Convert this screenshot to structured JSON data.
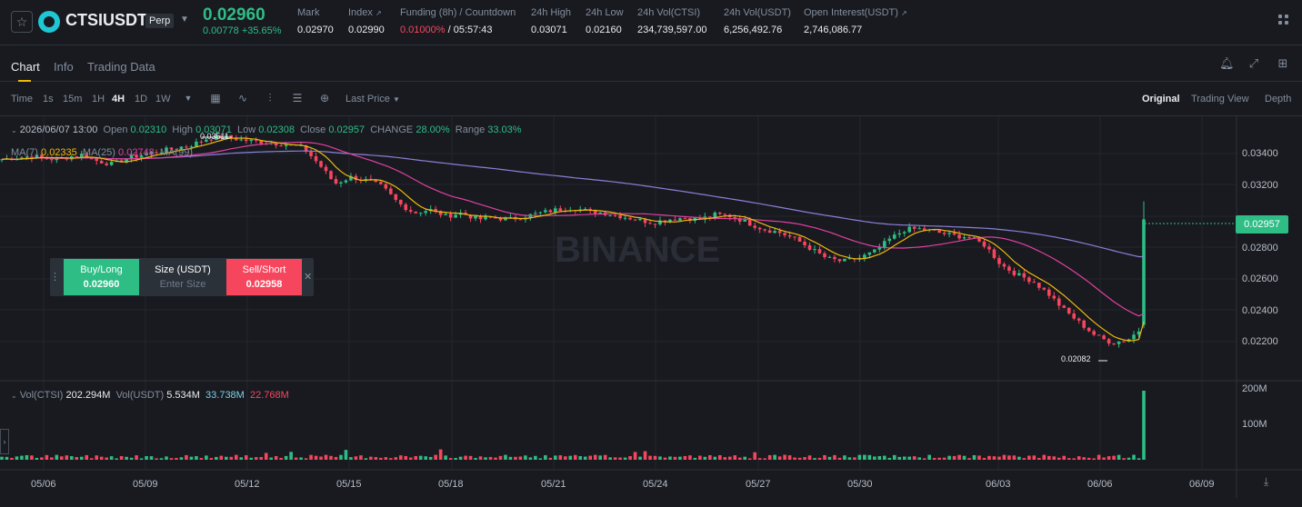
{
  "header": {
    "symbol": "CTSIUSDT",
    "contract_type": "Perp",
    "last_price": "0.02960",
    "change": "0.00778 +35.65%",
    "stats": [
      {
        "label": "Mark",
        "value": "0.02970"
      },
      {
        "label": "Index",
        "value": "0.02990"
      },
      {
        "label": "Funding (8h) / Countdown",
        "value_red": "0.01000%",
        "value": "/ 05:57:43"
      },
      {
        "label": "24h High",
        "value": "0.03071"
      },
      {
        "label": "24h Low",
        "value": "0.02160"
      },
      {
        "label": "24h Vol(CTSI)",
        "value": "234,739,597.00"
      },
      {
        "label": "24h Vol(USDT)",
        "value": "6,256,492.76"
      },
      {
        "label": "Open Interest(USDT)",
        "value": "2,746,086.77"
      }
    ]
  },
  "tabs": [
    "Chart",
    "Info",
    "Trading Data"
  ],
  "toolbar": {
    "intervals": [
      "Time",
      "1s",
      "15m",
      "1H",
      "4H",
      "1D",
      "1W"
    ],
    "active_interval": "4H",
    "price_type": "Last Price",
    "views": [
      "Original",
      "Trading View",
      "Depth"
    ],
    "active_view": "Original"
  },
  "legend": {
    "date": "2026/06/07 13:00",
    "open_label": "Open",
    "open": "0.02310",
    "high_label": "High",
    "high": "0.03071",
    "low_label": "Low",
    "low": "0.02308",
    "close_label": "Close",
    "close": "0.02957",
    "change_label": "CHANGE",
    "change": "28.00%",
    "range_label": "Range",
    "range": "33.03%",
    "ma7_label": "MA(7)",
    "ma7": "0.02335",
    "ma25_label": "MA(25)",
    "ma25": "0.02748",
    "ma99_label": "MA(99)",
    "max_label": "0.03511",
    "min_label": "0.02082"
  },
  "volume_legend": {
    "ctsi_label": "Vol(CTSI)",
    "ctsi": "202.294M",
    "usdt_label": "Vol(USDT)",
    "usdt": "5.534M",
    "ma1": "33.738M",
    "ma2": "22.768M"
  },
  "order_panel": {
    "buy_label": "Buy/Long",
    "buy_price": "0.02960",
    "size_label": "Size (USDT)",
    "size_placeholder": "Enter Size",
    "sell_label": "Sell/Short",
    "sell_price": "0.02958"
  },
  "watermark": "BINANCE",
  "current_price_badge": "0.02957",
  "colors": {
    "up": "#2ebd85",
    "down": "#f6465d",
    "ma7": "#f0b90b",
    "ma25": "#e040a0",
    "ma99": "#8b7fd6",
    "bg": "#181a20"
  },
  "chart_data": {
    "type": "candlestick",
    "y_ticks": [
      "0.03400",
      "0.03200",
      "0.03000",
      "0.02800",
      "0.02600",
      "0.02400",
      "0.02200"
    ],
    "ylim": [
      0.02,
      0.0355
    ],
    "volume_ticks": [
      "200M",
      "100M"
    ],
    "x_ticks": [
      "05/06",
      "05/09",
      "05/12",
      "05/15",
      "05/18",
      "05/21",
      "05/24",
      "05/27",
      "05/30",
      "06/03",
      "06/06",
      "06/09"
    ],
    "close_path": [
      0.0333,
      0.0334,
      0.0335,
      0.0333,
      0.0334,
      0.0336,
      0.0332,
      0.033,
      0.0334,
      0.0336,
      0.0338,
      0.034,
      0.0342,
      0.0346,
      0.0347,
      0.0345,
      0.0344,
      0.0343,
      0.0342,
      0.034,
      0.033,
      0.0318,
      0.0322,
      0.032,
      0.0316,
      0.0306,
      0.03,
      0.0302,
      0.0298,
      0.03,
      0.0296,
      0.0297,
      0.0296,
      0.0298,
      0.03,
      0.0302,
      0.0303,
      0.0301,
      0.03,
      0.0298,
      0.0296,
      0.0294,
      0.0296,
      0.0297,
      0.0296,
      0.0299,
      0.0298,
      0.0294,
      0.029,
      0.0288,
      0.0284,
      0.0278,
      0.0272,
      0.027,
      0.0272,
      0.0276,
      0.0284,
      0.029,
      0.029,
      0.0288,
      0.0286,
      0.0285,
      0.028,
      0.0268,
      0.0262,
      0.0258,
      0.025,
      0.024,
      0.0232,
      0.0224,
      0.022,
      0.0222,
      0.023,
      0.0296
    ]
  }
}
